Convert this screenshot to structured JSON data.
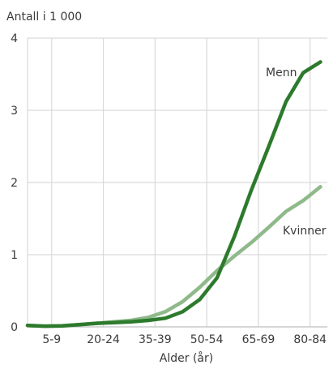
{
  "chart_data": {
    "type": "line",
    "ylabel": "Antall i 1 000",
    "xlabel": "Alder (år)",
    "x_tick_labels": [
      "5-9",
      "20-24",
      "35-39",
      "50-54",
      "65-69",
      "80-84"
    ],
    "y_tick_labels": [
      "0",
      "1",
      "2",
      "3",
      "4"
    ],
    "ylim": [
      0,
      4
    ],
    "grid": true,
    "x": [
      0,
      5,
      10,
      15,
      20,
      25,
      30,
      35,
      40,
      45,
      50,
      55,
      60,
      65,
      70,
      75,
      80,
      85,
      90
    ],
    "series": [
      {
        "name": "Menn",
        "color": "#2d7a2d",
        "values": [
          0.02,
          0.01,
          0.015,
          0.03,
          0.05,
          0.06,
          0.07,
          0.09,
          0.12,
          0.21,
          0.38,
          0.68,
          1.25,
          1.9,
          2.5,
          3.12,
          3.52,
          3.67,
          3.67
        ]
      },
      {
        "name": "Kvinner",
        "color": "#8fb98a",
        "values": [
          0.02,
          0.01,
          0.015,
          0.03,
          0.05,
          0.07,
          0.09,
          0.13,
          0.21,
          0.35,
          0.55,
          0.78,
          0.98,
          1.17,
          1.38,
          1.6,
          1.75,
          1.94,
          1.94
        ]
      }
    ],
    "x_positions_of_ticks": [
      7,
      22,
      37,
      52,
      67,
      82
    ],
    "x_range": [
      0,
      87
    ]
  },
  "colors": {
    "grid": "#d9d9d9",
    "axis_text": "#3a3a3a"
  }
}
